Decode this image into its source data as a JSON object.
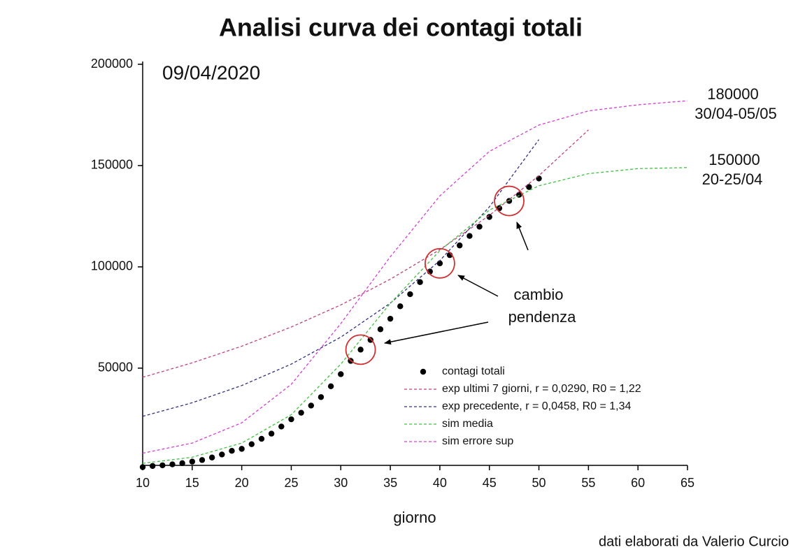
{
  "chart_data": {
    "type": "line",
    "title": "Analisi curva dei contagi totali",
    "date": "09/04/2020",
    "xlabel": "giorno",
    "credit": "dati elaborati da Valerio Curcio",
    "xlim": [
      10,
      65
    ],
    "ylim": [
      2000,
      200000
    ],
    "xticks": [
      10,
      15,
      20,
      25,
      30,
      35,
      40,
      45,
      50,
      55,
      60,
      65
    ],
    "yticks": [
      50000,
      100000,
      150000,
      200000
    ],
    "series": [
      {
        "name": "contagi totali",
        "color": "#000000",
        "style": "markers",
        "x": [
          10,
          11,
          12,
          13,
          14,
          15,
          16,
          17,
          18,
          19,
          20,
          21,
          22,
          23,
          24,
          25,
          26,
          27,
          28,
          29,
          30,
          31,
          32,
          33,
          34,
          35,
          36,
          37,
          38,
          39,
          40,
          41,
          42,
          43,
          44,
          45,
          46,
          47,
          48,
          49,
          50
        ],
        "values": [
          1128,
          1694,
          2036,
          2502,
          3089,
          3858,
          4636,
          5883,
          7375,
          9172,
          10149,
          12462,
          15113,
          17660,
          21157,
          24747,
          27980,
          31506,
          35713,
          41035,
          47021,
          53578,
          59138,
          63927,
          69176,
          74386,
          80539,
          86498,
          92472,
          97689,
          101739,
          105792,
          110574,
          115242,
          119827,
          124632,
          128948,
          132547,
          135586,
          139422,
          143626
        ]
      },
      {
        "name": "exp ultimi 7 giorni, r = 0,0290, R0 = 1,22",
        "color": "#c04080",
        "style": "dashed",
        "x": [
          10,
          15,
          20,
          25,
          30,
          35,
          40,
          45,
          50,
          55
        ],
        "values": [
          45500,
          52600,
          60800,
          70300,
          81200,
          93900,
          108500,
          125400,
          145000,
          167600
        ]
      },
      {
        "name": "exp precedente, r = 0,0458, R0 = 1,34",
        "color": "#303080",
        "style": "dashed",
        "x": [
          10,
          15,
          20,
          25,
          30,
          35,
          40,
          45,
          50
        ],
        "values": [
          26200,
          32900,
          41400,
          52000,
          65300,
          82100,
          103100,
          129600,
          162800
        ]
      },
      {
        "name": "sim media",
        "color": "#40c040",
        "style": "dashed",
        "x": [
          10,
          15,
          20,
          25,
          30,
          35,
          40,
          45,
          50,
          55,
          60,
          65
        ],
        "values": [
          3000,
          6000,
          13000,
          27000,
          52000,
          82000,
          108000,
          128000,
          140000,
          146000,
          148500,
          149000
        ]
      },
      {
        "name": "sim errore sup",
        "color": "#d040d0",
        "style": "dashed",
        "x": [
          10,
          15,
          20,
          25,
          30,
          35,
          40,
          45,
          50,
          55,
          60,
          65
        ],
        "values": [
          8000,
          13000,
          23000,
          42000,
          72000,
          105000,
          135000,
          157000,
          170000,
          177000,
          180000,
          182000
        ]
      }
    ],
    "highlighted_x": [
      32,
      40,
      47
    ],
    "annotations": [
      "cambio",
      "pendenza",
      "180000",
      "30/04-05/05",
      "150000",
      "20-25/04"
    ]
  }
}
